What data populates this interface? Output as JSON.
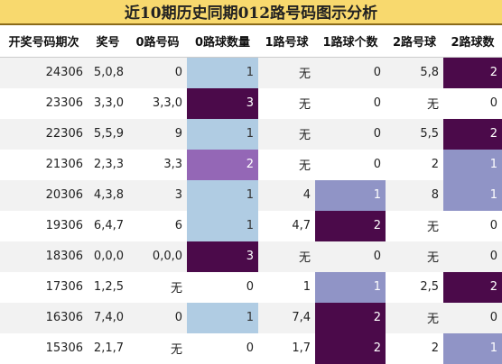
{
  "title": "近10期历史同期012路号码图示分析",
  "headers": [
    "开奖号码期次",
    "奖号",
    "0路号码",
    "0路球数量",
    "1路号球",
    "1路球个数",
    "2路号球",
    "2路球数"
  ],
  "colors": {
    "light_blue": "#b0cce3",
    "dark_purple": "#4b0a4a",
    "medium_purple": "#9467b6",
    "periwinkle": "#9094c6",
    "title_bg": "#f8d96e"
  },
  "rows": [
    {
      "period": "24306",
      "number": "5,0,8",
      "r0": "0",
      "r0c": "1",
      "r1": "无",
      "r1c": "0",
      "r2": "5,8",
      "r2c": "2"
    },
    {
      "period": "23306",
      "number": "3,3,0",
      "r0": "3,3,0",
      "r0c": "3",
      "r1": "无",
      "r1c": "0",
      "r2": "无",
      "r2c": "0"
    },
    {
      "period": "22306",
      "number": "5,5,9",
      "r0": "9",
      "r0c": "1",
      "r1": "无",
      "r1c": "0",
      "r2": "5,5",
      "r2c": "2"
    },
    {
      "period": "21306",
      "number": "2,3,3",
      "r0": "3,3",
      "r0c": "2",
      "r1": "无",
      "r1c": "0",
      "r2": "2",
      "r2c": "1"
    },
    {
      "period": "20306",
      "number": "4,3,8",
      "r0": "3",
      "r0c": "1",
      "r1": "4",
      "r1c": "1",
      "r2": "8",
      "r2c": "1"
    },
    {
      "period": "19306",
      "number": "6,4,7",
      "r0": "6",
      "r0c": "1",
      "r1": "4,7",
      "r1c": "2",
      "r2": "无",
      "r2c": "0"
    },
    {
      "period": "18306",
      "number": "0,0,0",
      "r0": "0,0,0",
      "r0c": "3",
      "r1": "无",
      "r1c": "0",
      "r2": "无",
      "r2c": "0"
    },
    {
      "period": "17306",
      "number": "1,2,5",
      "r0": "无",
      "r0c": "0",
      "r1": "1",
      "r1c": "1",
      "r2": "2,5",
      "r2c": "2"
    },
    {
      "period": "16306",
      "number": "7,4,0",
      "r0": "0",
      "r0c": "1",
      "r1": "7,4",
      "r1c": "2",
      "r2": "无",
      "r2c": "0"
    },
    {
      "period": "15306",
      "number": "2,1,7",
      "r0": "无",
      "r0c": "0",
      "r1": "1,7",
      "r1c": "2",
      "r2": "2",
      "r2c": "1"
    }
  ]
}
